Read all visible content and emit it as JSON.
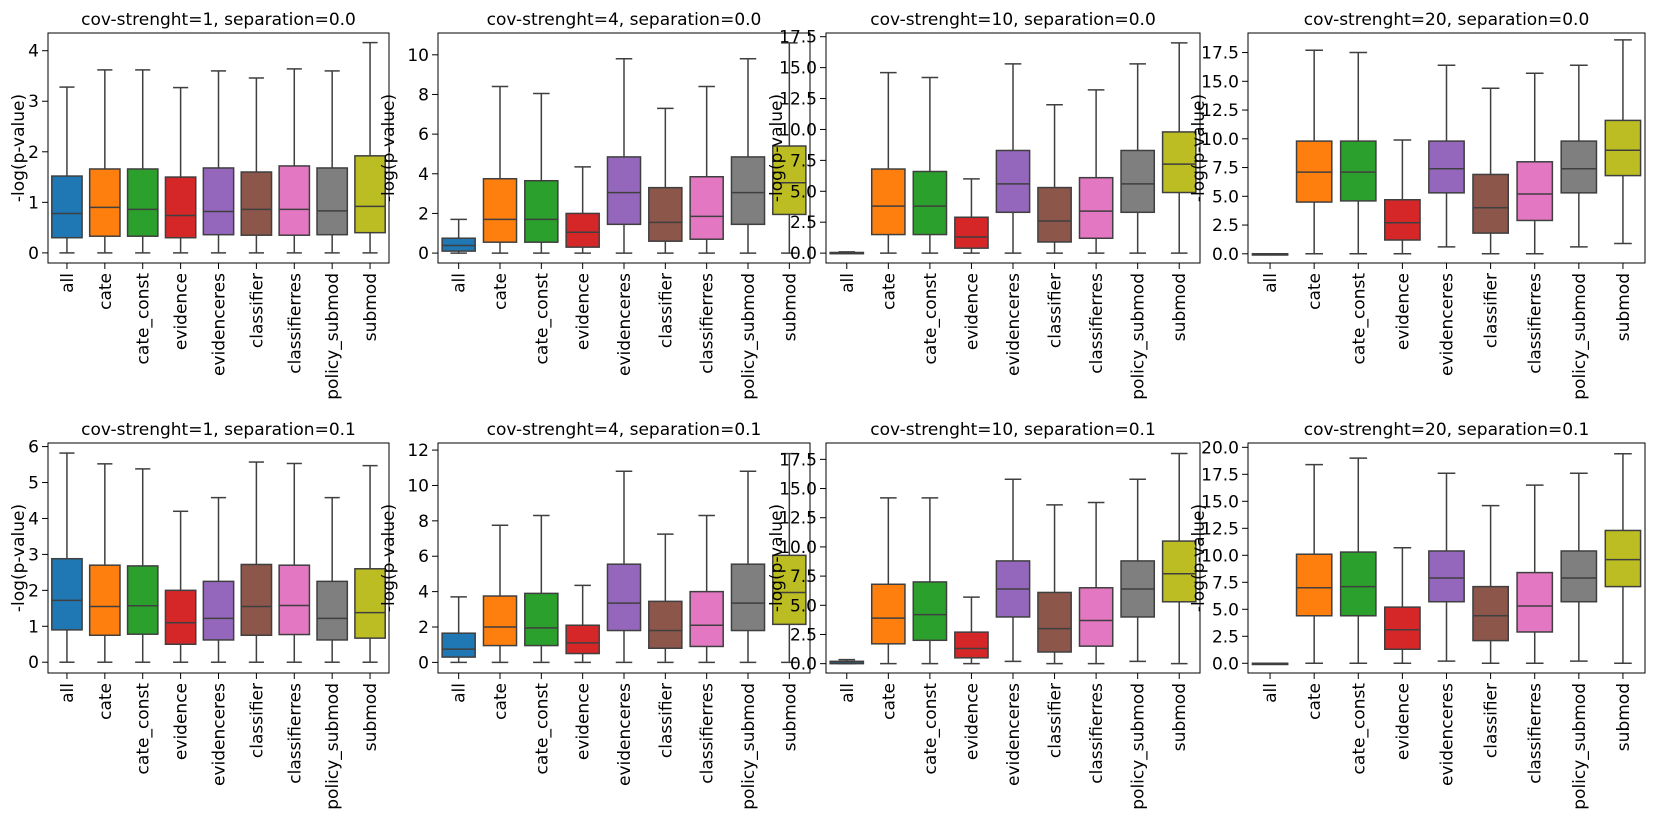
{
  "figure": {
    "colors": [
      "#1f77b4",
      "#ff7f0e",
      "#2ca02c",
      "#d62728",
      "#9467bd",
      "#8c564b",
      "#e377c2",
      "#7f7f7f",
      "#bcbd22"
    ],
    "edge_color": "#3f3f3f"
  },
  "chart_data": [
    {
      "type": "box",
      "title": "cov-strenght=1, separation=0.0",
      "ylabel": "-log(p-value)",
      "ylim": [
        -0.2,
        4.35
      ],
      "yticks": [
        0,
        1,
        2,
        3,
        4
      ],
      "categories": [
        "all",
        "cate",
        "cate_const",
        "evidence",
        "evidenceres",
        "classifier",
        "classifierres",
        "policy_submod",
        "submod"
      ],
      "boxes": [
        {
          "min": 0,
          "q1": 0.3,
          "median": 0.78,
          "q3": 1.52,
          "max": 3.28
        },
        {
          "min": 0,
          "q1": 0.33,
          "median": 0.9,
          "q3": 1.66,
          "max": 3.62
        },
        {
          "min": 0,
          "q1": 0.33,
          "median": 0.86,
          "q3": 1.66,
          "max": 3.62
        },
        {
          "min": 0,
          "q1": 0.3,
          "median": 0.74,
          "q3": 1.5,
          "max": 3.27
        },
        {
          "min": 0,
          "q1": 0.36,
          "median": 0.82,
          "q3": 1.68,
          "max": 3.6
        },
        {
          "min": 0,
          "q1": 0.35,
          "median": 0.86,
          "q3": 1.6,
          "max": 3.46
        },
        {
          "min": 0,
          "q1": 0.35,
          "median": 0.86,
          "q3": 1.72,
          "max": 3.64
        },
        {
          "min": 0,
          "q1": 0.36,
          "median": 0.83,
          "q3": 1.68,
          "max": 3.6
        },
        {
          "min": 0,
          "q1": 0.4,
          "median": 0.92,
          "q3": 1.92,
          "max": 4.16
        }
      ]
    },
    {
      "type": "box",
      "title": "cov-strenght=4, separation=0.0",
      "ylabel": "-log(p-value)",
      "ylim": [
        -0.5,
        11.1
      ],
      "yticks": [
        0,
        2,
        4,
        6,
        8,
        10
      ],
      "categories": [
        "all",
        "cate",
        "cate_const",
        "evidence",
        "evidenceres",
        "classifier",
        "classifierres",
        "policy_submod",
        "submod"
      ],
      "boxes": [
        {
          "min": 0,
          "q1": 0.1,
          "median": 0.38,
          "q3": 0.75,
          "max": 1.7
        },
        {
          "min": 0,
          "q1": 0.55,
          "median": 1.7,
          "q3": 3.75,
          "max": 8.4
        },
        {
          "min": 0,
          "q1": 0.55,
          "median": 1.7,
          "q3": 3.65,
          "max": 8.05
        },
        {
          "min": 0,
          "q1": 0.3,
          "median": 1.05,
          "q3": 2.0,
          "max": 4.35
        },
        {
          "min": 0,
          "q1": 1.45,
          "median": 3.05,
          "q3": 4.85,
          "max": 9.8
        },
        {
          "min": 0,
          "q1": 0.6,
          "median": 1.55,
          "q3": 3.3,
          "max": 7.3
        },
        {
          "min": 0,
          "q1": 0.7,
          "median": 1.85,
          "q3": 3.85,
          "max": 8.4
        },
        {
          "min": 0,
          "q1": 1.45,
          "median": 3.05,
          "q3": 4.85,
          "max": 9.8
        },
        {
          "min": 0,
          "q1": 1.95,
          "median": 3.55,
          "q3": 5.4,
          "max": 10.6
        }
      ]
    },
    {
      "type": "box",
      "title": "cov-strenght=10, separation=0.0",
      "ylabel": "-log(p-value)",
      "ylim": [
        -0.8,
        17.8
      ],
      "yticks": [
        0.0,
        2.5,
        5.0,
        7.5,
        10.0,
        12.5,
        15.0,
        17.5
      ],
      "tick_decimals": 1,
      "categories": [
        "all",
        "cate",
        "cate_const",
        "evidence",
        "evidenceres",
        "classifier",
        "classifierres",
        "policy_submod",
        "submod"
      ],
      "boxes": [
        {
          "min": 0,
          "q1": 0,
          "median": 0,
          "q3": 0.05,
          "max": 0.1
        },
        {
          "min": 0,
          "q1": 1.5,
          "median": 3.8,
          "q3": 6.8,
          "max": 14.6
        },
        {
          "min": 0,
          "q1": 1.5,
          "median": 3.8,
          "q3": 6.6,
          "max": 14.2
        },
        {
          "min": 0,
          "q1": 0.4,
          "median": 1.3,
          "q3": 2.9,
          "max": 6.0
        },
        {
          "min": 0,
          "q1": 3.3,
          "median": 5.6,
          "q3": 8.3,
          "max": 15.3
        },
        {
          "min": 0,
          "q1": 0.9,
          "median": 2.6,
          "q3": 5.3,
          "max": 12.0
        },
        {
          "min": 0,
          "q1": 1.2,
          "median": 3.4,
          "q3": 6.1,
          "max": 13.2
        },
        {
          "min": 0,
          "q1": 3.3,
          "median": 5.6,
          "q3": 8.3,
          "max": 15.3
        },
        {
          "min": 0,
          "q1": 4.9,
          "median": 7.2,
          "q3": 9.8,
          "max": 17.0
        }
      ]
    },
    {
      "type": "box",
      "title": "cov-strenght=20, separation=0.0",
      "ylabel": "-log(p-value)",
      "ylim": [
        -0.8,
        19.2
      ],
      "yticks": [
        0.0,
        2.5,
        5.0,
        7.5,
        10.0,
        12.5,
        15.0,
        17.5
      ],
      "tick_decimals": 1,
      "categories": [
        "all",
        "cate",
        "cate_const",
        "evidence",
        "evidenceres",
        "classifier",
        "classifierres",
        "policy_submod",
        "submod"
      ],
      "boxes": [
        {
          "min": 0,
          "q1": 0,
          "median": 0,
          "q3": 0,
          "max": 0
        },
        {
          "min": 0,
          "q1": 4.5,
          "median": 7.1,
          "q3": 9.8,
          "max": 17.7
        },
        {
          "min": 0,
          "q1": 4.6,
          "median": 7.1,
          "q3": 9.8,
          "max": 17.5
        },
        {
          "min": 0,
          "q1": 1.2,
          "median": 2.7,
          "q3": 4.7,
          "max": 9.9
        },
        {
          "min": 0.6,
          "q1": 5.3,
          "median": 7.4,
          "q3": 9.8,
          "max": 16.4
        },
        {
          "min": 0,
          "q1": 1.8,
          "median": 4.0,
          "q3": 6.9,
          "max": 14.4
        },
        {
          "min": 0,
          "q1": 2.9,
          "median": 5.2,
          "q3": 8.0,
          "max": 15.7
        },
        {
          "min": 0.6,
          "q1": 5.3,
          "median": 7.4,
          "q3": 9.8,
          "max": 16.4
        },
        {
          "min": 0.9,
          "q1": 6.8,
          "median": 9.0,
          "q3": 11.6,
          "max": 18.6
        }
      ]
    },
    {
      "type": "box",
      "title": "cov-strenght=1, separation=0.1",
      "ylabel": "-log(p-value)",
      "ylim": [
        -0.3,
        6.1
      ],
      "yticks": [
        0,
        1,
        2,
        3,
        4,
        5,
        6
      ],
      "categories": [
        "all",
        "cate",
        "cate_const",
        "evidence",
        "evidenceres",
        "classifier",
        "classifierres",
        "policy_submod",
        "submod"
      ],
      "boxes": [
        {
          "min": 0,
          "q1": 0.9,
          "median": 1.72,
          "q3": 2.88,
          "max": 5.82
        },
        {
          "min": 0,
          "q1": 0.75,
          "median": 1.55,
          "q3": 2.7,
          "max": 5.52
        },
        {
          "min": 0,
          "q1": 0.78,
          "median": 1.57,
          "q3": 2.68,
          "max": 5.38
        },
        {
          "min": 0,
          "q1": 0.5,
          "median": 1.1,
          "q3": 2.0,
          "max": 4.2
        },
        {
          "min": 0,
          "q1": 0.62,
          "median": 1.22,
          "q3": 2.25,
          "max": 4.58
        },
        {
          "min": 0,
          "q1": 0.75,
          "median": 1.55,
          "q3": 2.72,
          "max": 5.57
        },
        {
          "min": 0,
          "q1": 0.77,
          "median": 1.58,
          "q3": 2.7,
          "max": 5.53
        },
        {
          "min": 0,
          "q1": 0.62,
          "median": 1.22,
          "q3": 2.25,
          "max": 4.58
        },
        {
          "min": 0,
          "q1": 0.67,
          "median": 1.38,
          "q3": 2.6,
          "max": 5.47
        }
      ]
    },
    {
      "type": "box",
      "title": "cov-strenght=4, separation=0.1",
      "ylabel": "-log(p-value)",
      "ylim": [
        -0.6,
        12.4
      ],
      "yticks": [
        0,
        2,
        4,
        6,
        8,
        10,
        12
      ],
      "categories": [
        "all",
        "cate",
        "cate_const",
        "evidence",
        "evidenceres",
        "classifier",
        "classifierres",
        "policy_submod",
        "submod"
      ],
      "boxes": [
        {
          "min": 0,
          "q1": 0.3,
          "median": 0.75,
          "q3": 1.65,
          "max": 3.7
        },
        {
          "min": 0,
          "q1": 0.95,
          "median": 2.0,
          "q3": 3.75,
          "max": 7.75
        },
        {
          "min": 0,
          "q1": 0.95,
          "median": 1.95,
          "q3": 3.9,
          "max": 8.3
        },
        {
          "min": 0,
          "q1": 0.5,
          "median": 1.1,
          "q3": 2.1,
          "max": 4.35
        },
        {
          "min": 0,
          "q1": 1.8,
          "median": 3.35,
          "q3": 5.55,
          "max": 10.8
        },
        {
          "min": 0,
          "q1": 0.8,
          "median": 1.8,
          "q3": 3.45,
          "max": 7.25
        },
        {
          "min": 0,
          "q1": 0.9,
          "median": 2.1,
          "q3": 4.0,
          "max": 8.3
        },
        {
          "min": 0,
          "q1": 1.8,
          "median": 3.35,
          "q3": 5.55,
          "max": 10.8
        },
        {
          "min": 0,
          "q1": 2.15,
          "median": 3.95,
          "q3": 6.05,
          "max": 11.8
        }
      ]
    },
    {
      "type": "box",
      "title": "cov-strenght=10, separation=0.1",
      "ylabel": "-log(p-value)",
      "ylim": [
        -0.8,
        18.9
      ],
      "yticks": [
        0.0,
        2.5,
        5.0,
        7.5,
        10.0,
        12.5,
        15.0,
        17.5
      ],
      "tick_decimals": 1,
      "categories": [
        "all",
        "cate",
        "cate_const",
        "evidence",
        "evidenceres",
        "classifier",
        "classifierres",
        "policy_submod",
        "submod"
      ],
      "boxes": [
        {
          "min": 0,
          "q1": 0,
          "median": 0.05,
          "q3": 0.2,
          "max": 0.35
        },
        {
          "min": 0,
          "q1": 1.7,
          "median": 3.9,
          "q3": 6.8,
          "max": 14.2
        },
        {
          "min": 0,
          "q1": 2.0,
          "median": 4.2,
          "q3": 7.0,
          "max": 14.2
        },
        {
          "min": 0,
          "q1": 0.5,
          "median": 1.3,
          "q3": 2.7,
          "max": 5.7
        },
        {
          "min": 0.2,
          "q1": 4.0,
          "median": 6.4,
          "q3": 8.8,
          "max": 15.8
        },
        {
          "min": 0,
          "q1": 1.0,
          "median": 3.0,
          "q3": 6.1,
          "max": 13.6
        },
        {
          "min": 0,
          "q1": 1.5,
          "median": 3.7,
          "q3": 6.5,
          "max": 13.8
        },
        {
          "min": 0.2,
          "q1": 4.0,
          "median": 6.4,
          "q3": 8.8,
          "max": 15.8
        },
        {
          "min": 0,
          "q1": 5.3,
          "median": 7.7,
          "q3": 10.5,
          "max": 18.0
        }
      ]
    },
    {
      "type": "box",
      "title": "cov-strenght=20, separation=0.1",
      "ylabel": "-log(p-value)",
      "ylim": [
        -0.9,
        20.4
      ],
      "yticks": [
        0.0,
        2.5,
        5.0,
        7.5,
        10.0,
        12.5,
        15.0,
        17.5,
        20.0
      ],
      "tick_decimals": 1,
      "categories": [
        "all",
        "cate",
        "cate_const",
        "evidence",
        "evidenceres",
        "classifier",
        "classifierres",
        "policy_submod",
        "submod"
      ],
      "boxes": [
        {
          "min": 0,
          "q1": 0,
          "median": 0,
          "q3": 0,
          "max": 0
        },
        {
          "min": 0,
          "q1": 4.4,
          "median": 7.0,
          "q3": 10.1,
          "max": 18.4
        },
        {
          "min": 0,
          "q1": 4.4,
          "median": 7.1,
          "q3": 10.3,
          "max": 19.0
        },
        {
          "min": 0,
          "q1": 1.3,
          "median": 3.1,
          "q3": 5.2,
          "max": 10.7
        },
        {
          "min": 0.2,
          "q1": 5.7,
          "median": 7.9,
          "q3": 10.4,
          "max": 17.6
        },
        {
          "min": 0,
          "q1": 2.1,
          "median": 4.4,
          "q3": 7.1,
          "max": 14.6
        },
        {
          "min": 0,
          "q1": 2.9,
          "median": 5.3,
          "q3": 8.4,
          "max": 16.5
        },
        {
          "min": 0.2,
          "q1": 5.7,
          "median": 7.9,
          "q3": 10.4,
          "max": 17.6
        },
        {
          "min": 0,
          "q1": 7.1,
          "median": 9.6,
          "q3": 12.3,
          "max": 19.4
        }
      ]
    }
  ]
}
